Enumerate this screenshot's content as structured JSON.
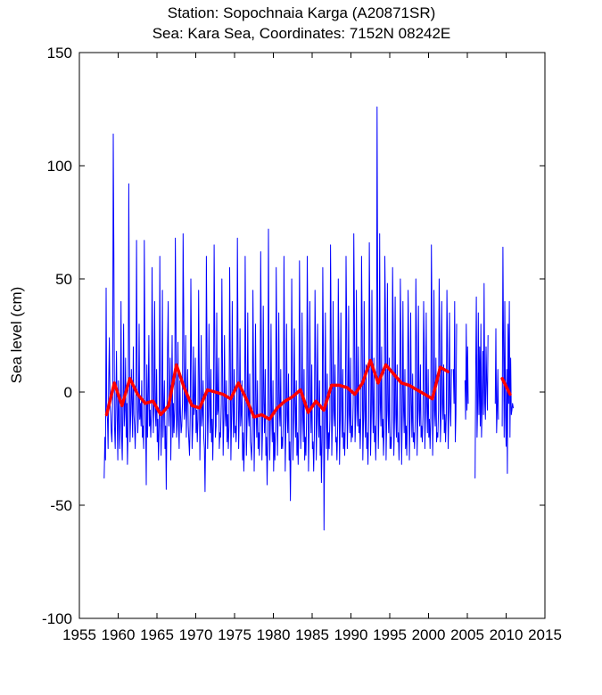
{
  "chart_data": {
    "type": "line",
    "title": "Station: Sopochnaia Karga  (A20871SR)",
    "subtitle": "Sea: Kara Sea, Coordinates: 7152N 08242E",
    "xlabel": "",
    "ylabel": "Sea level (cm)",
    "xlim": [
      1955,
      2015
    ],
    "ylim": [
      -100,
      150
    ],
    "xticks": [
      1955,
      1960,
      1965,
      1970,
      1975,
      1980,
      1985,
      1990,
      1995,
      2000,
      2005,
      2010,
      2015
    ],
    "yticks": [
      -100,
      -50,
      0,
      50,
      100,
      150
    ],
    "grid": false,
    "legend": "none",
    "series": [
      {
        "style": "monthly",
        "color": "#0000ff",
        "segments": [
          {
            "x_start": 1958.2,
            "x_step": 0.0833333,
            "values": [
              -38,
              -20,
              -30,
              46,
              -8,
              -12,
              -25,
              5,
              24,
              -5,
              -10,
              -18,
              -22,
              -2,
              114,
              60,
              -15,
              -25,
              -5,
              18,
              -10,
              -30,
              5,
              -8,
              -25,
              -12,
              40,
              -20,
              -30,
              -5,
              30,
              -15,
              -8,
              15,
              -20,
              -5,
              -32,
              -15,
              92,
              25,
              -22,
              -10,
              10,
              -5,
              -20,
              20,
              -10,
              -15,
              -25,
              -8,
              67,
              10,
              -18,
              -8,
              30,
              -12,
              -5,
              -15,
              5,
              -20,
              -15,
              -25,
              67,
              20,
              -10,
              -41,
              12,
              -20,
              -5,
              25,
              -15,
              -8,
              -20,
              -10,
              55,
              15,
              -18,
              -5,
              40,
              -8,
              -15,
              10,
              -22,
              -12,
              -30,
              -15,
              60,
              -5,
              -28,
              -10,
              45,
              -20,
              -8,
              5,
              -25,
              -15,
              -43,
              -10,
              20,
              40,
              -15,
              -5,
              15,
              -30,
              -10,
              25,
              -20,
              -5,
              -18,
              -8,
              68,
              30,
              -20,
              -12,
              22,
              -15,
              -25,
              5,
              -10,
              -18,
              -15,
              -5,
              70,
              35,
              -12,
              -8,
              25,
              -20,
              -5,
              10,
              -15,
              -22,
              -28,
              -10,
              50,
              15,
              -25,
              -15,
              20,
              -10,
              -5,
              15,
              -18,
              -8,
              -22,
              -12,
              45,
              10,
              -30,
              -8,
              25,
              -15,
              -10,
              5,
              -20,
              -25,
              -44,
              -15,
              60,
              20,
              -25,
              -10,
              30,
              -5,
              -18,
              10,
              -22,
              -12,
              -30,
              -10,
              65,
              25,
              -20,
              -15,
              35,
              -10,
              -8,
              15,
              -25,
              -18,
              -20,
              -5,
              50,
              12,
              -28,
              -12,
              25,
              -8,
              -15,
              5,
              -22,
              -10,
              -25,
              -15,
              55,
              18,
              -30,
              -10,
              40,
              -5,
              -20,
              10,
              -18,
              -15,
              -22,
              -12,
              68,
              20,
              -25,
              -8,
              28,
              -15,
              -10,
              5,
              -30,
              -18,
              -35,
              -20,
              60,
              15,
              -28,
              -12,
              35,
              -10,
              -15,
              8,
              -22,
              -25,
              -30,
              -15,
              45,
              10,
              -35,
              -10,
              30,
              -8,
              -20,
              5,
              -25,
              -18,
              -28,
              -12,
              62,
              25,
              -30,
              -15,
              38,
              -5,
              -18,
              10,
              -28,
              -20,
              -41,
              -20,
              72,
              15,
              -30,
              -12,
              30,
              -10,
              -22,
              5,
              -35,
              -18,
              -30,
              -15,
              55,
              20,
              -28,
              -10,
              35,
              -8,
              -15,
              10,
              -25,
              -20,
              -25,
              -12,
              60,
              18,
              -35,
              -15,
              30,
              -10,
              -18,
              8,
              -30,
              -22,
              -48,
              -20,
              50,
              12,
              -30,
              -10,
              28,
              -5,
              -20,
              5,
              -28,
              -18,
              -32,
              -15,
              58,
              20,
              -25,
              -12,
              35,
              -8,
              -22,
              10,
              -30,
              -20,
              -28,
              -10,
              60,
              25,
              -35,
              -15,
              40,
              -5,
              -18,
              12,
              -25,
              -22,
              -35,
              -18,
              45,
              15,
              -30,
              -12,
              30,
              -10,
              -20,
              5,
              -28,
              -15,
              -40,
              -20,
              55,
              20,
              -61,
              -15,
              35,
              -5,
              -25,
              8,
              -30,
              -18,
              -25,
              -12,
              65,
              25,
              -28,
              -10,
              40,
              -8,
              -15,
              12,
              -22,
              -20,
              -30,
              -15,
              50,
              18,
              -32,
              -12,
              35,
              -5,
              -20,
              10,
              -25,
              -18,
              -28,
              -10,
              60,
              30,
              -25,
              -8,
              38,
              -10,
              -18,
              15,
              -22,
              -15,
              -20,
              -5,
              70,
              35,
              -22,
              -10,
              45,
              -5,
              -15,
              20,
              -18,
              -12,
              -25,
              -8,
              60,
              28,
              -30,
              -12,
              40,
              -8,
              -20,
              12,
              -25,
              -18,
              -32,
              -12,
              66,
              30,
              -28,
              -10,
              45,
              -5,
              -18,
              15,
              -22,
              -15,
              -30,
              -10,
              126,
              40,
              -25,
              -8,
              70,
              -5,
              -15,
              20,
              -20,
              -12,
              -28,
              -15,
              60,
              35,
              -30,
              -10,
              48,
              -8,
              -18,
              15,
              -25,
              -20,
              -25,
              -12,
              55,
              30,
              -28,
              -12,
              42,
              -10,
              -20,
              12,
              -22,
              -18,
              -30,
              -15,
              50,
              25,
              -32,
              -10,
              40,
              -8,
              -18,
              10,
              -25,
              -15,
              -28,
              -10,
              45,
              20,
              -30,
              -12,
              35,
              -5,
              -20,
              8,
              -22,
              -18,
              -25,
              -12,
              50,
              25,
              -28,
              -10,
              38,
              -8,
              -15,
              12,
              -20,
              -15,
              -22,
              -10,
              40,
              20,
              -25,
              -8,
              35,
              -5,
              -18,
              10,
              -20,
              -12,
              -25,
              -12,
              65,
              30,
              -28,
              -10,
              45,
              -8,
              -15,
              15,
              -22,
              -18,
              -20,
              -8,
              50,
              25,
              -22,
              -10,
              40,
              -5,
              -12,
              12,
              -18,
              -10,
              -22,
              -10,
              45,
              20,
              -25,
              -8,
              35,
              -5,
              -15,
              10
            ]
          },
          {
            "x_start": 2003.2,
            "x_step": 0.0833333,
            "values": [
              10,
              -5,
              40,
              -22,
              -10,
              30
            ]
          },
          {
            "x_start": 2004.7,
            "x_step": 0.0833333,
            "values": [
              5,
              -12,
              30,
              -8,
              20,
              -5
            ]
          },
          {
            "x_start": 2006.0,
            "x_step": 0.0833333,
            "values": [
              -38,
              10,
              42,
              -20,
              -5,
              35,
              -10,
              20,
              -15,
              30,
              -20,
              -5,
              18,
              -10,
              48,
              -5,
              -12,
              20,
              5,
              -8,
              25
            ]
          },
          {
            "x_start": 2008.6,
            "x_step": 0.0833333,
            "values": [
              -5,
              28,
              -18,
              -8,
              10,
              -12
            ]
          },
          {
            "x_start": 2009.5,
            "x_step": 0.0833333,
            "values": [
              -15,
              64,
              20,
              -20,
              40,
              -10,
              -24,
              10,
              -36,
              30,
              -5,
              40,
              -20,
              15,
              -10,
              -8,
              -5,
              -7
            ]
          }
        ]
      },
      {
        "style": "annual",
        "color": "#ff0000",
        "segments": [
          {
            "x": [
              1958.5,
              1959.5,
              1960.5,
              1961.5,
              1962.5,
              1963.5,
              1964.5,
              1965.5,
              1966.5,
              1967.5,
              1968.5,
              1969.5,
              1970.5,
              1971.5,
              1972.5,
              1973.5,
              1974.5,
              1975.5,
              1976.5,
              1977.5,
              1978.5,
              1979.5,
              1980.5,
              1981.5,
              1982.5,
              1983.5,
              1984.5,
              1985.5,
              1986.5,
              1987.5,
              1988.5,
              1989.5,
              1990.5,
              1991.5,
              1992.5,
              1993.5,
              1994.5,
              1995.5,
              1996.5,
              1997.5,
              1998.5,
              1999.5,
              2000.5,
              2001.5,
              2002.5
            ],
            "y": [
              -10,
              4,
              -6,
              6,
              -1,
              -5,
              -4,
              -10,
              -6,
              12,
              2,
              -6,
              -7,
              1,
              0,
              -1,
              -3,
              4,
              -3,
              -11,
              -10,
              -12,
              -7,
              -4,
              -2,
              1,
              -9,
              -4,
              -8,
              3,
              3,
              2,
              -1,
              4,
              14,
              4,
              12,
              8,
              4,
              3,
              1,
              -1,
              -3,
              11,
              9
            ]
          },
          {
            "x": [
              2009.5,
              2010.5
            ],
            "y": [
              6,
              -1
            ]
          }
        ]
      }
    ]
  }
}
